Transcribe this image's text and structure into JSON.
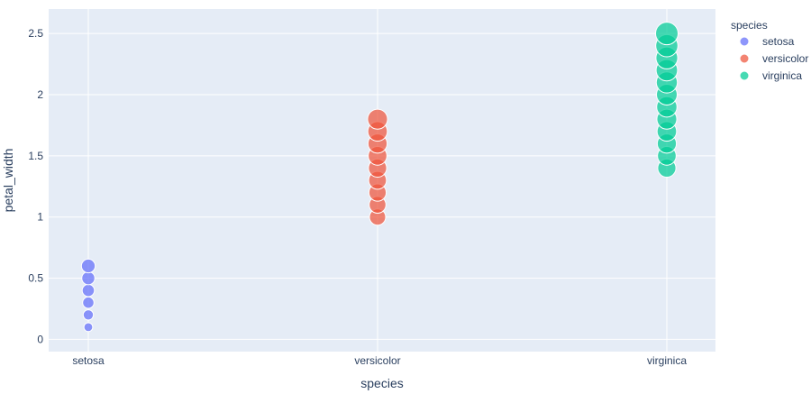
{
  "chart_data": {
    "type": "scatter",
    "xlabel": "species",
    "ylabel": "petal_width",
    "categories": [
      "setosa",
      "versicolor",
      "virginica"
    ],
    "ylim": [
      -0.1,
      2.7
    ],
    "yticks": [
      0,
      0.5,
      1,
      1.5,
      2,
      2.5
    ],
    "ytick_labels": [
      "0",
      "0.5",
      "1",
      "1.5",
      "2",
      "2.5"
    ],
    "grid": true,
    "legend_title": "species",
    "legend_position": "top-right",
    "plot_background": "#e5ecf6",
    "series": [
      {
        "name": "setosa",
        "color": "#636efa",
        "x": "setosa",
        "values": [
          0.1,
          0.2,
          0.3,
          0.4,
          0.5,
          0.6
        ]
      },
      {
        "name": "versicolor",
        "color": "#ef553b",
        "x": "versicolor",
        "values": [
          1.0,
          1.1,
          1.2,
          1.3,
          1.4,
          1.5,
          1.6,
          1.7,
          1.8
        ]
      },
      {
        "name": "virginica",
        "color": "#00cc96",
        "x": "virginica",
        "values": [
          1.4,
          1.5,
          1.6,
          1.7,
          1.8,
          1.9,
          2.0,
          2.1,
          2.2,
          2.3,
          2.4,
          2.5
        ]
      }
    ]
  }
}
